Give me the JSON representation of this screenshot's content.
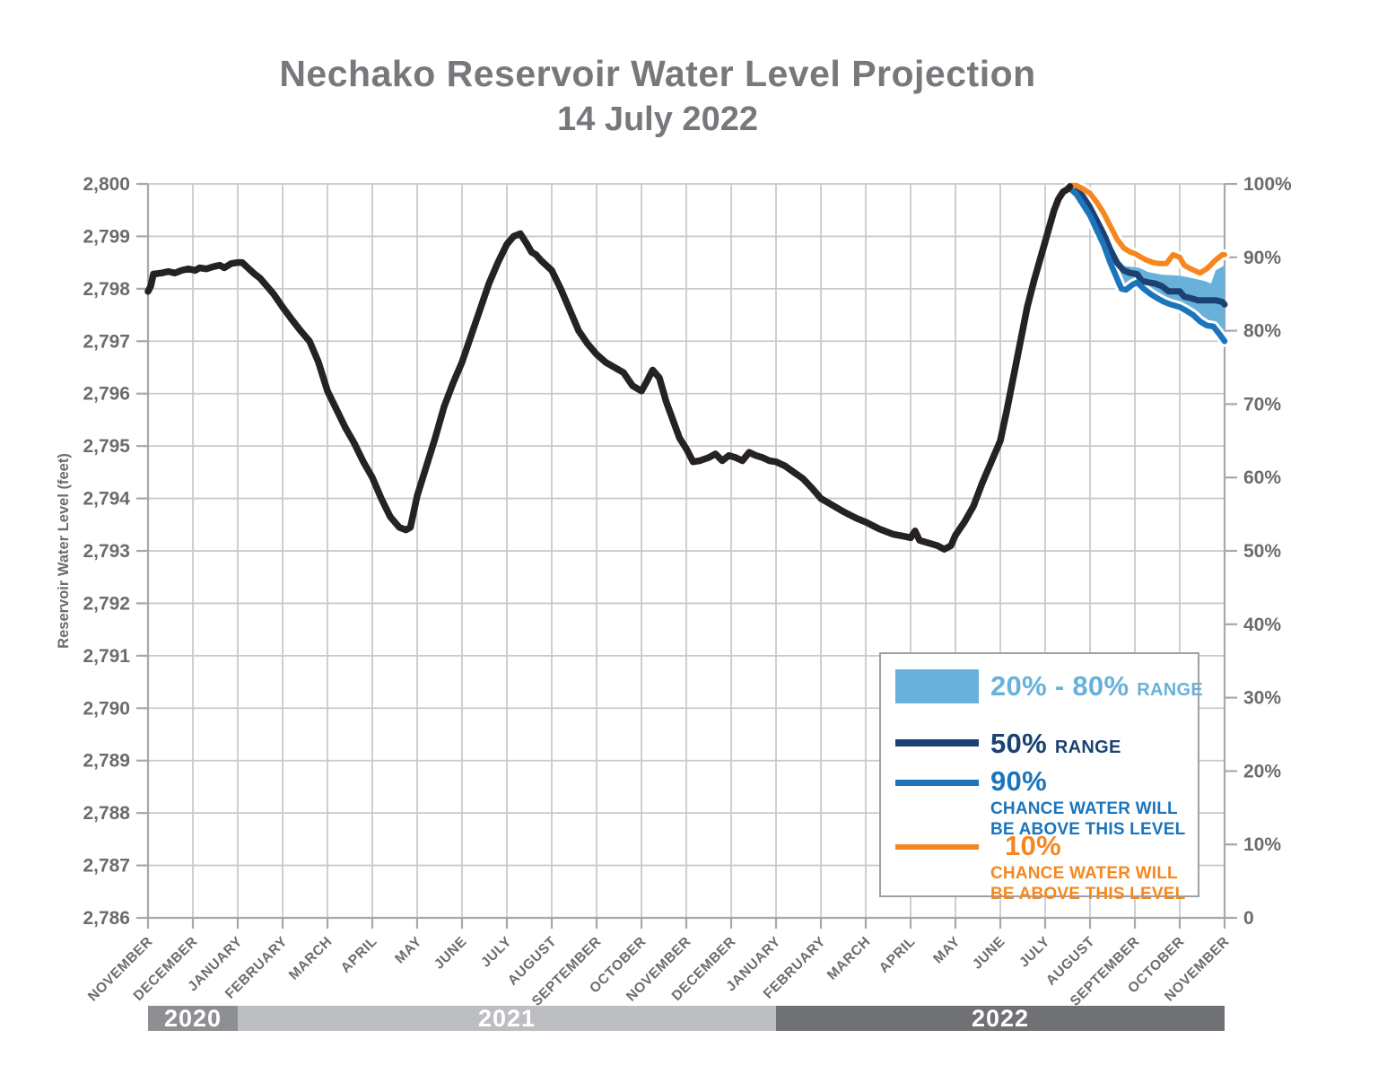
{
  "title": {
    "line1": "Nechako Reservoir Water Level Projection",
    "line2": "14 July 2022"
  },
  "colors": {
    "title_gray": "#77787b",
    "axis_text": "#6a6c6e",
    "gridline": "#c9cacc",
    "axis_line": "#a6a8ab",
    "observed_black": "#262223",
    "band_light_blue": "#68b1da",
    "range50_navy": "#1c4273",
    "chance90_blue": "#1b75bc",
    "chance10_orange": "#f6871f",
    "year_2020": "#8d8f92",
    "year_2021": "#bdbec1",
    "year_2022": "#6f7174"
  },
  "legend": {
    "items": [
      {
        "label_big": "20% - 80%",
        "label_small": "RANGE",
        "color": "#68b1da"
      },
      {
        "label_big": "50%",
        "label_small": "RANGE",
        "color": "#1c4273"
      },
      {
        "label_big": "90%",
        "sub": [
          "CHANCE WATER WILL",
          "BE ABOVE THIS LEVEL"
        ],
        "color": "#1b75bc"
      },
      {
        "label_big": "10%",
        "sub": [
          "CHANCE WATER WILL",
          "BE ABOVE THIS LEVEL"
        ],
        "color": "#f6871f"
      }
    ]
  },
  "year_bands": [
    {
      "label": "2020",
      "from_month": 0,
      "to_month": 2,
      "color": "#8d8f92"
    },
    {
      "label": "2021",
      "from_month": 2,
      "to_month": 14,
      "color": "#bdbec1"
    },
    {
      "label": "2022",
      "from_month": 14,
      "to_month": 24,
      "color": "#6f7174"
    }
  ],
  "chart_data": {
    "type": "line",
    "title": "Nechako Reservoir Water Level Projection",
    "subtitle": "14 July 2022",
    "ylabel_left": "Reservoir Water Level (feet)",
    "ylim_left": [
      2786,
      2800
    ],
    "yticks_left": [
      "2,786",
      "2,787",
      "2,788",
      "2,789",
      "2,790",
      "2,791",
      "2,792",
      "2,793",
      "2,794",
      "2,795",
      "2,796",
      "2,797",
      "2,798",
      "2,799",
      "2,800"
    ],
    "ylim_right_percent": [
      0,
      100
    ],
    "yticks_right": [
      "0",
      "10%",
      "20%",
      "30%",
      "40%",
      "50%",
      "60%",
      "70%",
      "80%",
      "90%",
      "100%"
    ],
    "x_unit": "months since 1 November 2020",
    "x_months": [
      "NOVEMBER",
      "DECEMBER",
      "JANUARY",
      "FEBRUARY",
      "MARCH",
      "APRIL",
      "MAY",
      "JUNE",
      "JULY",
      "AUGUST",
      "SEPTEMBER",
      "OCTOBER",
      "NOVEMBER",
      "DECEMBER",
      "JANUARY",
      "FEBRUARY",
      "MARCH",
      "APRIL",
      "MAY",
      "JUNE",
      "JULY",
      "AUGUST",
      "SEPTEMBER",
      "OCTOBER",
      "NOVEMBER"
    ],
    "grid": true,
    "legend_position": "lower right",
    "series": [
      {
        "name": "Observed reservoir water level",
        "color": "#262223",
        "width": 7.5,
        "points": [
          [
            0,
            2797.95
          ],
          [
            0.06,
            2798.05
          ],
          [
            0.12,
            2798.28
          ],
          [
            0.3,
            2798.3
          ],
          [
            0.45,
            2798.33
          ],
          [
            0.6,
            2798.3
          ],
          [
            0.75,
            2798.35
          ],
          [
            0.9,
            2798.38
          ],
          [
            1.05,
            2798.35
          ],
          [
            1.15,
            2798.4
          ],
          [
            1.3,
            2798.38
          ],
          [
            1.45,
            2798.42
          ],
          [
            1.6,
            2798.45
          ],
          [
            1.7,
            2798.4
          ],
          [
            1.85,
            2798.48
          ],
          [
            2.0,
            2798.5
          ],
          [
            2.1,
            2798.5
          ],
          [
            2.2,
            2798.42
          ],
          [
            2.35,
            2798.3
          ],
          [
            2.5,
            2798.2
          ],
          [
            2.65,
            2798.05
          ],
          [
            2.8,
            2797.9
          ],
          [
            3.0,
            2797.65
          ],
          [
            3.2,
            2797.42
          ],
          [
            3.4,
            2797.2
          ],
          [
            3.6,
            2797.0
          ],
          [
            3.8,
            2796.6
          ],
          [
            4.0,
            2796.05
          ],
          [
            4.2,
            2795.7
          ],
          [
            4.4,
            2795.35
          ],
          [
            4.6,
            2795.05
          ],
          [
            4.8,
            2794.7
          ],
          [
            5.0,
            2794.4
          ],
          [
            5.2,
            2794.0
          ],
          [
            5.4,
            2793.65
          ],
          [
            5.6,
            2793.45
          ],
          [
            5.75,
            2793.4
          ],
          [
            5.85,
            2793.45
          ],
          [
            6.0,
            2794.05
          ],
          [
            6.2,
            2794.6
          ],
          [
            6.4,
            2795.15
          ],
          [
            6.6,
            2795.75
          ],
          [
            6.8,
            2796.2
          ],
          [
            7.0,
            2796.6
          ],
          [
            7.2,
            2797.1
          ],
          [
            7.4,
            2797.6
          ],
          [
            7.6,
            2798.1
          ],
          [
            7.8,
            2798.5
          ],
          [
            8.0,
            2798.85
          ],
          [
            8.15,
            2799.0
          ],
          [
            8.3,
            2799.05
          ],
          [
            8.45,
            2798.85
          ],
          [
            8.55,
            2798.7
          ],
          [
            8.65,
            2798.65
          ],
          [
            8.75,
            2798.55
          ],
          [
            9.0,
            2798.35
          ],
          [
            9.2,
            2798.0
          ],
          [
            9.4,
            2797.6
          ],
          [
            9.6,
            2797.2
          ],
          [
            9.8,
            2796.95
          ],
          [
            10.0,
            2796.75
          ],
          [
            10.2,
            2796.6
          ],
          [
            10.4,
            2796.5
          ],
          [
            10.6,
            2796.4
          ],
          [
            10.8,
            2796.15
          ],
          [
            11.0,
            2796.05
          ],
          [
            11.1,
            2796.2
          ],
          [
            11.25,
            2796.45
          ],
          [
            11.4,
            2796.3
          ],
          [
            11.55,
            2795.85
          ],
          [
            11.7,
            2795.5
          ],
          [
            11.85,
            2795.15
          ],
          [
            12.0,
            2794.95
          ],
          [
            12.15,
            2794.7
          ],
          [
            12.3,
            2794.72
          ],
          [
            12.5,
            2794.78
          ],
          [
            12.65,
            2794.85
          ],
          [
            12.8,
            2794.72
          ],
          [
            12.95,
            2794.82
          ],
          [
            13.1,
            2794.78
          ],
          [
            13.25,
            2794.72
          ],
          [
            13.4,
            2794.88
          ],
          [
            13.55,
            2794.82
          ],
          [
            13.7,
            2794.78
          ],
          [
            13.85,
            2794.72
          ],
          [
            14.0,
            2794.7
          ],
          [
            14.2,
            2794.62
          ],
          [
            14.4,
            2794.5
          ],
          [
            14.6,
            2794.38
          ],
          [
            14.8,
            2794.2
          ],
          [
            15.0,
            2794.0
          ],
          [
            15.2,
            2793.9
          ],
          [
            15.5,
            2793.75
          ],
          [
            15.8,
            2793.62
          ],
          [
            16.0,
            2793.55
          ],
          [
            16.3,
            2793.42
          ],
          [
            16.6,
            2793.32
          ],
          [
            16.9,
            2793.27
          ],
          [
            17.0,
            2793.25
          ],
          [
            17.1,
            2793.38
          ],
          [
            17.2,
            2793.2
          ],
          [
            17.4,
            2793.15
          ],
          [
            17.6,
            2793.1
          ],
          [
            17.75,
            2793.03
          ],
          [
            17.9,
            2793.1
          ],
          [
            18.0,
            2793.3
          ],
          [
            18.2,
            2793.55
          ],
          [
            18.4,
            2793.85
          ],
          [
            18.6,
            2794.3
          ],
          [
            18.8,
            2794.7
          ],
          [
            19.0,
            2795.1
          ],
          [
            19.15,
            2795.7
          ],
          [
            19.3,
            2796.35
          ],
          [
            19.45,
            2797.0
          ],
          [
            19.6,
            2797.65
          ],
          [
            19.75,
            2798.15
          ],
          [
            19.9,
            2798.6
          ],
          [
            20.0,
            2798.9
          ],
          [
            20.1,
            2799.2
          ],
          [
            20.2,
            2799.5
          ],
          [
            20.3,
            2799.72
          ],
          [
            20.4,
            2799.85
          ],
          [
            20.5,
            2799.9
          ],
          [
            20.55,
            2799.95
          ]
        ]
      },
      {
        "name": "50% range projection",
        "color": "#1c4273",
        "width": 7,
        "points": [
          [
            20.55,
            2799.95
          ],
          [
            20.7,
            2799.9
          ],
          [
            20.85,
            2799.75
          ],
          [
            21.0,
            2799.55
          ],
          [
            21.15,
            2799.3
          ],
          [
            21.3,
            2799.05
          ],
          [
            21.45,
            2798.75
          ],
          [
            21.6,
            2798.5
          ],
          [
            21.75,
            2798.35
          ],
          [
            21.9,
            2798.3
          ],
          [
            22.05,
            2798.28
          ],
          [
            22.15,
            2798.15
          ],
          [
            22.3,
            2798.12
          ],
          [
            22.45,
            2798.1
          ],
          [
            22.6,
            2798.05
          ],
          [
            22.75,
            2797.95
          ],
          [
            23.0,
            2797.95
          ],
          [
            23.1,
            2797.85
          ],
          [
            23.25,
            2797.82
          ],
          [
            23.4,
            2797.78
          ],
          [
            23.8,
            2797.78
          ],
          [
            23.95,
            2797.75
          ],
          [
            24.0,
            2797.7
          ]
        ]
      },
      {
        "name": "90% chance water will be above this level",
        "color": "#1b75bc",
        "width": 6.5,
        "points": [
          [
            20.55,
            2799.92
          ],
          [
            20.7,
            2799.8
          ],
          [
            20.85,
            2799.6
          ],
          [
            21.0,
            2799.4
          ],
          [
            21.15,
            2799.12
          ],
          [
            21.3,
            2798.85
          ],
          [
            21.45,
            2798.5
          ],
          [
            21.6,
            2798.2
          ],
          [
            21.7,
            2798.0
          ],
          [
            21.8,
            2797.98
          ],
          [
            21.95,
            2798.08
          ],
          [
            22.05,
            2798.12
          ],
          [
            22.2,
            2798.0
          ],
          [
            22.35,
            2797.9
          ],
          [
            22.5,
            2797.82
          ],
          [
            22.65,
            2797.75
          ],
          [
            22.8,
            2797.7
          ],
          [
            23.0,
            2797.65
          ],
          [
            23.15,
            2797.58
          ],
          [
            23.3,
            2797.5
          ],
          [
            23.45,
            2797.38
          ],
          [
            23.6,
            2797.3
          ],
          [
            23.75,
            2797.28
          ],
          [
            23.9,
            2797.12
          ],
          [
            24.0,
            2797.0
          ]
        ]
      },
      {
        "name": "10% chance water will be above this level",
        "color": "#f6871f",
        "width": 6,
        "points": [
          [
            20.55,
            2799.97
          ],
          [
            20.7,
            2799.97
          ],
          [
            20.85,
            2799.9
          ],
          [
            21.0,
            2799.82
          ],
          [
            21.15,
            2799.65
          ],
          [
            21.3,
            2799.45
          ],
          [
            21.45,
            2799.2
          ],
          [
            21.6,
            2798.95
          ],
          [
            21.75,
            2798.78
          ],
          [
            21.9,
            2798.7
          ],
          [
            22.0,
            2798.67
          ],
          [
            22.1,
            2798.62
          ],
          [
            22.25,
            2798.55
          ],
          [
            22.4,
            2798.5
          ],
          [
            22.55,
            2798.48
          ],
          [
            22.7,
            2798.48
          ],
          [
            22.85,
            2798.65
          ],
          [
            23.0,
            2798.6
          ],
          [
            23.1,
            2798.45
          ],
          [
            23.25,
            2798.38
          ],
          [
            23.45,
            2798.3
          ],
          [
            23.6,
            2798.38
          ],
          [
            23.8,
            2798.55
          ],
          [
            23.95,
            2798.65
          ],
          [
            24.0,
            2798.65
          ]
        ]
      }
    ],
    "band_20_80": {
      "name": "20% - 80% range",
      "color": "#68b1da",
      "upper": [
        [
          20.55,
          2799.93
        ],
        [
          21.0,
          2799.48
        ],
        [
          21.3,
          2798.98
        ],
        [
          21.6,
          2798.45
        ],
        [
          21.9,
          2798.42
        ],
        [
          22.1,
          2798.4
        ],
        [
          22.3,
          2798.32
        ],
        [
          22.6,
          2798.27
        ],
        [
          23.0,
          2798.25
        ],
        [
          23.3,
          2798.2
        ],
        [
          23.55,
          2798.15
        ],
        [
          23.7,
          2798.1
        ],
        [
          23.8,
          2798.35
        ],
        [
          24.0,
          2798.45
        ]
      ],
      "lower": [
        [
          20.55,
          2799.9
        ],
        [
          21.0,
          2799.35
        ],
        [
          21.3,
          2798.88
        ],
        [
          21.6,
          2798.25
        ],
        [
          21.8,
          2798.1
        ],
        [
          22.0,
          2798.08
        ],
        [
          22.2,
          2797.98
        ],
        [
          22.5,
          2797.88
        ],
        [
          22.8,
          2797.8
        ],
        [
          23.0,
          2797.72
        ],
        [
          23.2,
          2797.6
        ],
        [
          23.45,
          2797.45
        ],
        [
          23.6,
          2797.38
        ],
        [
          23.8,
          2797.3
        ],
        [
          24.0,
          2797.15
        ]
      ]
    },
    "projection_start_x": 20.55
  }
}
